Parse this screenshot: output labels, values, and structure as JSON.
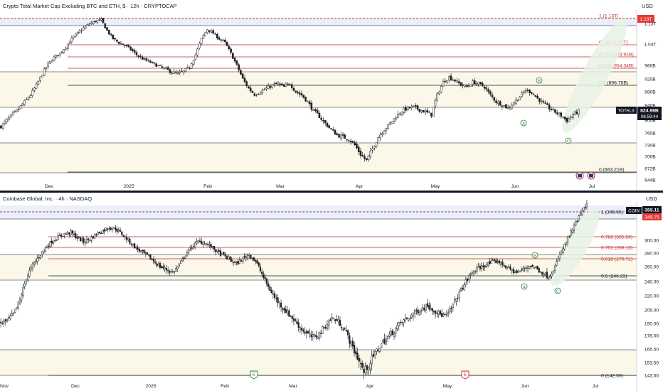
{
  "top": {
    "title": "Crypto Total Market Cap Excluding BTC and ETH, $ · 12h · CRYPTOCAP",
    "currency": "USD",
    "ticker": "TOTAL3",
    "price_label": "824.98B",
    "countdown": "06:59:44",
    "top_tag": "1.13T",
    "y_ticks": [
      "1.13T",
      "1.04T",
      "960B",
      "920B",
      "880B",
      "840B",
      "800B",
      "760B",
      "730B",
      "700B",
      "672B",
      "644B"
    ],
    "x_ticks": [
      "Dec",
      "2025",
      "Feb",
      "Mar",
      "Apr",
      "May",
      "Jun",
      "Jul"
    ],
    "fib": [
      {
        "label": "1 (1.13T)",
        "value": 1130
      },
      {
        "label": "0.786 (1.03T)",
        "value": 1030
      },
      {
        "label": "0.702 (993.91B)",
        "value": 993.91
      },
      {
        "label": "0.618 (954.34B)",
        "value": 954.34
      },
      {
        "label": "0.5 (898.75B)",
        "value": 898.75
      },
      {
        "label": "0 (663.21B)",
        "value": 663.21
      }
    ],
    "waves": [
      "A",
      "B",
      "C"
    ]
  },
  "bottom": {
    "title": "Coinbase Global, Inc. · 4h · NASDAQ",
    "currency": "USD",
    "ticker": "COIN",
    "price_label": "355.11",
    "price_label2": "349.75",
    "y_ticks": [
      "300.00",
      "280.00",
      "260.00",
      "240.00",
      "220.00",
      "205.00",
      "190.00",
      "178.00",
      "165.50",
      "153.50",
      "143.50"
    ],
    "x_ticks": [
      "Nov",
      "Dec",
      "2025",
      "Feb",
      "Mar",
      "Apr",
      "May",
      "Jun",
      "Jul"
    ],
    "fib": [
      {
        "label": "1 (349.95)",
        "value": 349.95
      },
      {
        "label": "0.786 (305.56)",
        "value": 305.56
      },
      {
        "label": "0.702 (288.13)",
        "value": 288.13
      },
      {
        "label": "0.618 (270.71)",
        "value": 270.71
      },
      {
        "label": "0.5 (246.23)",
        "value": 246.23
      },
      {
        "label": "0 (142.50)",
        "value": 142.5
      }
    ],
    "waves": [
      "A",
      "B",
      "C"
    ],
    "events": [
      "E",
      "E"
    ]
  },
  "colors": {
    "up": "#26a69a",
    "candle": "#1a1a1a",
    "fib_red": "#c62828",
    "tag_red": "#e53935",
    "wave_green": "#2e7d32",
    "zone_fill": "#fbf8e9",
    "ellipse_fill": "#e6f2e4"
  },
  "chart_data": [
    {
      "type": "candlestick",
      "title": "Crypto Total Market Cap Excluding BTC and ETH, $ · 12h · CRYPTOCAP",
      "ylabel": "USD",
      "ylim": [
        644,
        1150
      ],
      "x_ticks": [
        "Dec",
        "2025",
        "Feb",
        "Mar",
        "Apr",
        "May",
        "Jun",
        "Jul"
      ],
      "series": [
        {
          "name": "TOTAL3",
          "path_points": [
            [
              0,
              780
            ],
            [
              3,
              800
            ],
            [
              6,
              815
            ],
            [
              9,
              830
            ],
            [
              12,
              850
            ],
            [
              15,
              870
            ],
            [
              18,
              900
            ],
            [
              21,
              935
            ],
            [
              24,
              965
            ],
            [
              27,
              990
            ],
            [
              30,
              1005
            ],
            [
              33,
              1030
            ],
            [
              36,
              1060
            ],
            [
              39,
              1080
            ],
            [
              42,
              1100
            ],
            [
              45,
              1115
            ],
            [
              48,
              1125
            ],
            [
              51,
              1130
            ],
            [
              54,
              1090
            ],
            [
              57,
              1060
            ],
            [
              60,
              1045
            ],
            [
              63,
              1035
            ],
            [
              66,
              1020
            ],
            [
              69,
              1000
            ],
            [
              72,
              985
            ],
            [
              75,
              975
            ],
            [
              78,
              965
            ],
            [
              81,
              955
            ],
            [
              84,
              948
            ],
            [
              87,
              940
            ],
            [
              90,
              935
            ],
            [
              93,
              942
            ],
            [
              96,
              955
            ],
            [
              99,
              1000
            ],
            [
              102,
              1060
            ],
            [
              105,
              1095
            ],
            [
              108,
              1080
            ],
            [
              111,
              1060
            ],
            [
              114,
              1045
            ],
            [
              117,
              1005
            ],
            [
              120,
              960
            ],
            [
              123,
              920
            ],
            [
              126,
              890
            ],
            [
              129,
              872
            ],
            [
              132,
              880
            ],
            [
              135,
              890
            ],
            [
              138,
              900
            ],
            [
              141,
              905
            ],
            [
              144,
              895
            ],
            [
              147,
              905
            ],
            [
              150,
              880
            ],
            [
              153,
              870
            ],
            [
              156,
              850
            ],
            [
              159,
              825
            ],
            [
              162,
              810
            ],
            [
              165,
              790
            ],
            [
              168,
              770
            ],
            [
              171,
              755
            ],
            [
              174,
              750
            ],
            [
              177,
              745
            ],
            [
              180,
              730
            ],
            [
              183,
              705
            ],
            [
              186,
              690
            ],
            [
              189,
              720
            ],
            [
              192,
              750
            ],
            [
              195,
              770
            ],
            [
              198,
              790
            ],
            [
              201,
              810
            ],
            [
              204,
              825
            ],
            [
              207,
              832
            ],
            [
              210,
              835
            ],
            [
              213,
              828
            ],
            [
              216,
              822
            ],
            [
              219,
              815
            ],
            [
              222,
              870
            ],
            [
              225,
              910
            ],
            [
              228,
              925
            ],
            [
              231,
              915
            ],
            [
              234,
              902
            ],
            [
              237,
              895
            ],
            [
              240,
              910
            ],
            [
              243,
              905
            ],
            [
              246,
              895
            ],
            [
              249,
              870
            ],
            [
              252,
              850
            ],
            [
              255,
              842
            ],
            [
              258,
              832
            ],
            [
              261,
              848
            ],
            [
              264,
              865
            ],
            [
              267,
              885
            ],
            [
              270,
              878
            ],
            [
              273,
              860
            ],
            [
              276,
              845
            ],
            [
              279,
              832
            ],
            [
              282,
              822
            ],
            [
              285,
              812
            ],
            [
              288,
              798
            ],
            [
              291,
              815
            ],
            [
              294,
              824
            ]
          ],
          "total_points": 295
        }
      ],
      "annotations": [
        "1 (1.13T)",
        "0.786 (1.03T)",
        "0.702 (993.91B)",
        "0.618 (954.34B)",
        "0.5 (898.75B)",
        "0 (663.21B)",
        "A",
        "B",
        "C"
      ]
    },
    {
      "type": "candlestick",
      "title": "Coinbase Global, Inc. · 4h · NASDAQ",
      "ylabel": "USD",
      "ylim": [
        140,
        365
      ],
      "x_ticks": [
        "Nov",
        "Dec",
        "2025",
        "Feb",
        "Mar",
        "Apr",
        "May",
        "Jun",
        "Jul"
      ],
      "series": [
        {
          "name": "COIN",
          "path_points": [
            [
              0,
              190
            ],
            [
              4,
              193
            ],
            [
              8,
              200
            ],
            [
              12,
              215
            ],
            [
              16,
              245
            ],
            [
              20,
              262
            ],
            [
              24,
              275
            ],
            [
              28,
              288
            ],
            [
              32,
              298
            ],
            [
              36,
              305
            ],
            [
              40,
              310
            ],
            [
              44,
              312
            ],
            [
              48,
              304
            ],
            [
              52,
              298
            ],
            [
              56,
              302
            ],
            [
              60,
              310
            ],
            [
              64,
              315
            ],
            [
              68,
              320
            ],
            [
              72,
              318
            ],
            [
              76,
              310
            ],
            [
              80,
              300
            ],
            [
              84,
              290
            ],
            [
              88,
              282
            ],
            [
              92,
              276
            ],
            [
              96,
              268
            ],
            [
              100,
              260
            ],
            [
              104,
              256
            ],
            [
              108,
              252
            ],
            [
              112,
              262
            ],
            [
              116,
              278
            ],
            [
              120,
              290
            ],
            [
              124,
              298
            ],
            [
              128,
              296
            ],
            [
              132,
              290
            ],
            [
              136,
              282
            ],
            [
              140,
              276
            ],
            [
              144,
              270
            ],
            [
              148,
              264
            ],
            [
              152,
              272
            ],
            [
              156,
              278
            ],
            [
              160,
              268
            ],
            [
              164,
              250
            ],
            [
              168,
              232
            ],
            [
              172,
              218
            ],
            [
              176,
              210
            ],
            [
              180,
              202
            ],
            [
              184,
              194
            ],
            [
              188,
              186
            ],
            [
              192,
              180
            ],
            [
              196,
              176
            ],
            [
              200,
              180
            ],
            [
              204,
              188
            ],
            [
              208,
              196
            ],
            [
              212,
              192
            ],
            [
              216,
              184
            ],
            [
              220,
              170
            ],
            [
              224,
              158
            ],
            [
              228,
              146
            ],
            [
              232,
              154
            ],
            [
              236,
              164
            ],
            [
              240,
              172
            ],
            [
              244,
              178
            ],
            [
              248,
              185
            ],
            [
              252,
              192
            ],
            [
              256,
              196
            ],
            [
              260,
              202
            ],
            [
              264,
              206
            ],
            [
              268,
              210
            ],
            [
              272,
              205
            ],
            [
              276,
              200
            ],
            [
              280,
              198
            ],
            [
              284,
              210
            ],
            [
              288,
              224
            ],
            [
              292,
              240
            ],
            [
              296,
              252
            ],
            [
              300,
              258
            ],
            [
              304,
              262
            ],
            [
              308,
              266
            ],
            [
              312,
              268
            ],
            [
              316,
              262
            ],
            [
              320,
              256
            ],
            [
              324,
              252
            ],
            [
              328,
              256
            ],
            [
              332,
              262
            ],
            [
              336,
              258
            ],
            [
              340,
              252
            ],
            [
              344,
              246
            ],
            [
              348,
              260
            ],
            [
              352,
              282
            ],
            [
              356,
              302
            ],
            [
              360,
              322
            ],
            [
              364,
              341
            ],
            [
              368,
              355
            ]
          ],
          "total_points": 369
        }
      ],
      "annotations": [
        "1 (349.95)",
        "0.786 (305.56)",
        "0.702 (288.13)",
        "0.618 (270.71)",
        "0.5 (246.23)",
        "0 (142.50)",
        "A",
        "B",
        "C",
        "E",
        "E"
      ]
    }
  ]
}
